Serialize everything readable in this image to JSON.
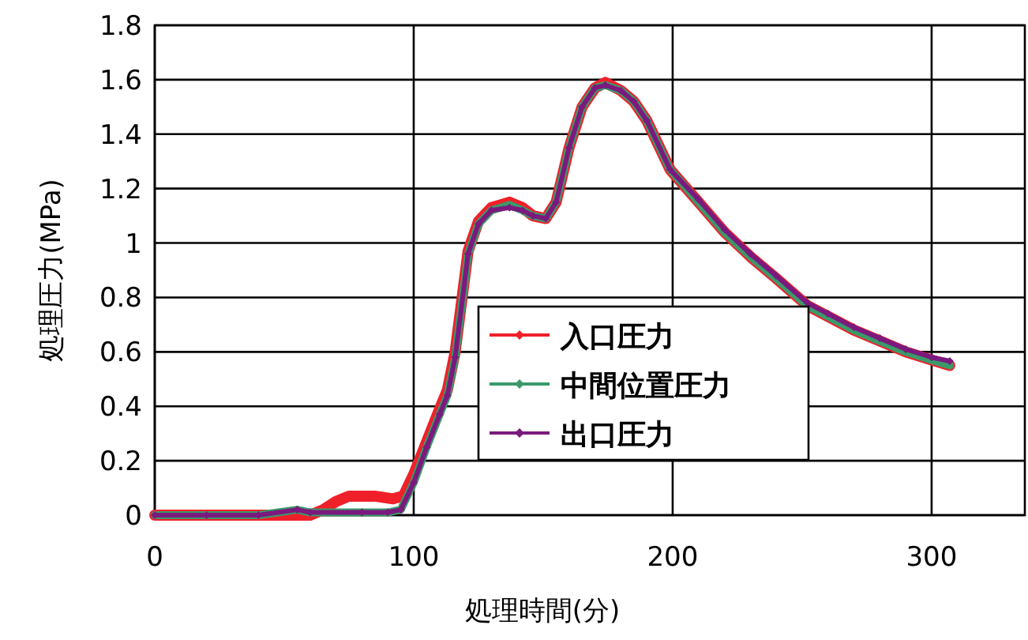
{
  "chart_data": {
    "type": "line",
    "xlabel": "処理時間(分)",
    "ylabel": "処理圧力(MPa)",
    "xlim": [
      0,
      336
    ],
    "ylim": [
      0,
      1.8
    ],
    "xticks": [
      0,
      100,
      200,
      300
    ],
    "yticks": [
      0,
      0.2,
      0.4,
      0.6,
      0.8,
      1,
      1.2,
      1.4,
      1.6,
      1.8
    ],
    "grid": true,
    "legend": "bottom",
    "line_style": "solid",
    "marker": "diamond",
    "series": [
      {
        "name": "入口圧力",
        "color": "#f0202a",
        "x": [
          0,
          20,
          40,
          60,
          65,
          70,
          75,
          85,
          92,
          96,
          100,
          105,
          110,
          113,
          116,
          121,
          125,
          130,
          137,
          142,
          146,
          151,
          155,
          160,
          165,
          170,
          174,
          180,
          185,
          190,
          199,
          210,
          220,
          230,
          240,
          252,
          260,
          270,
          280,
          290,
          300,
          307
        ],
        "values": [
          0,
          0,
          0,
          0,
          0.02,
          0.05,
          0.07,
          0.07,
          0.06,
          0.07,
          0.15,
          0.27,
          0.39,
          0.46,
          0.6,
          0.97,
          1.08,
          1.13,
          1.15,
          1.13,
          1.1,
          1.09,
          1.15,
          1.35,
          1.5,
          1.57,
          1.59,
          1.56,
          1.52,
          1.45,
          1.27,
          1.15,
          1.04,
          0.95,
          0.87,
          0.77,
          0.73,
          0.68,
          0.64,
          0.6,
          0.57,
          0.55
        ]
      },
      {
        "name": "中間位置圧力",
        "color": "#3a9a6a",
        "x": [
          0,
          20,
          40,
          55,
          60,
          80,
          90,
          95,
          100,
          105,
          110,
          113,
          116,
          121,
          125,
          130,
          137,
          142,
          146,
          151,
          155,
          160,
          165,
          170,
          174,
          180,
          185,
          190,
          199,
          210,
          220,
          230,
          240,
          252,
          260,
          270,
          280,
          290,
          300,
          307
        ],
        "values": [
          0,
          0,
          0,
          0.02,
          0.01,
          0.01,
          0.01,
          0.02,
          0.12,
          0.25,
          0.37,
          0.44,
          0.58,
          0.96,
          1.07,
          1.12,
          1.14,
          1.12,
          1.1,
          1.09,
          1.15,
          1.35,
          1.5,
          1.57,
          1.58,
          1.56,
          1.52,
          1.45,
          1.27,
          1.15,
          1.04,
          0.95,
          0.87,
          0.77,
          0.73,
          0.68,
          0.64,
          0.6,
          0.57,
          0.55
        ]
      },
      {
        "name": "出口圧力",
        "color": "#7b1a7e",
        "x": [
          0,
          20,
          40,
          55,
          60,
          80,
          90,
          95,
          100,
          105,
          110,
          113,
          116,
          121,
          125,
          130,
          137,
          142,
          146,
          151,
          155,
          160,
          165,
          170,
          174,
          180,
          185,
          190,
          199,
          210,
          220,
          230,
          240,
          252,
          260,
          270,
          280,
          290,
          300,
          307
        ],
        "values": [
          0,
          0,
          0,
          0.02,
          0.01,
          0.01,
          0.01,
          0.02,
          0.12,
          0.25,
          0.37,
          0.44,
          0.58,
          0.96,
          1.07,
          1.12,
          1.13,
          1.12,
          1.1,
          1.09,
          1.15,
          1.35,
          1.5,
          1.57,
          1.58,
          1.56,
          1.52,
          1.45,
          1.27,
          1.16,
          1.05,
          0.96,
          0.88,
          0.78,
          0.74,
          0.69,
          0.65,
          0.61,
          0.58,
          0.566
        ]
      }
    ]
  }
}
